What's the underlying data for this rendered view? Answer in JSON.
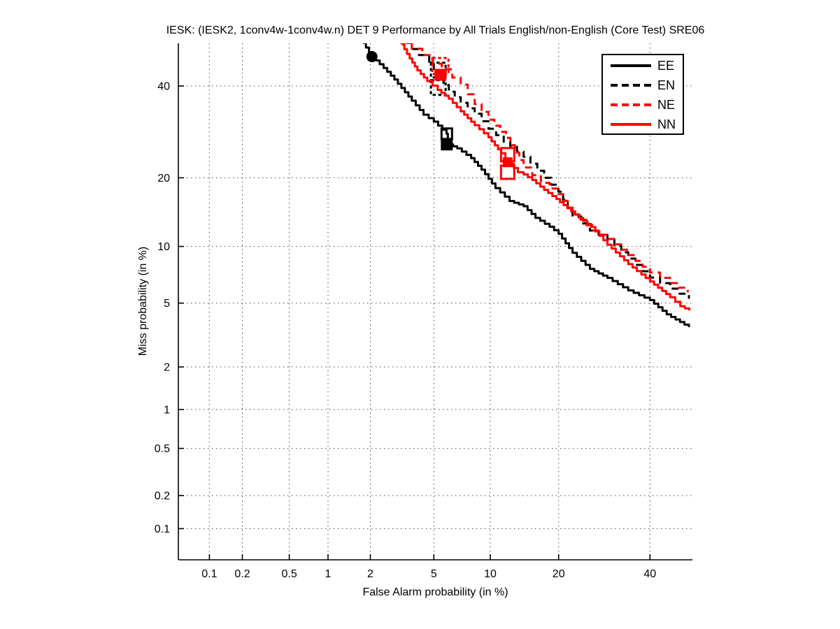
{
  "figure": {
    "title": "IESK: (IESK2, 1conv4w-1conv4w.n) DET 9 Performance by All Trials English/non-English (Core Test) SRE06",
    "background_color": "#ffffff"
  },
  "colors": {
    "black_series": "#000000",
    "red_series": "#ff0000",
    "grid": "#3a3a3a",
    "axis": "#000000"
  },
  "chart_data": {
    "type": "line",
    "subtype": "DET curve (normal-deviate / probit scale on both axes)",
    "title": "IESK: (IESK2, 1conv4w-1conv4w.n) DET 9 Performance by All Trials English/non-English (Core Test) SRE06",
    "xlabel": "False Alarm probability (in %)",
    "ylabel": "Miss probability (in %)",
    "grid": true,
    "legend_position": "top-right",
    "xlim_pct": [
      0.05,
      50.8
    ],
    "ylim_pct": [
      0.05,
      50.8
    ],
    "xticks": [
      0.1,
      0.2,
      0.5,
      1,
      2,
      5,
      10,
      20,
      40
    ],
    "yticks": [
      0.1,
      0.2,
      0.5,
      1,
      2,
      5,
      10,
      20,
      40
    ],
    "xtick_labels": [
      "0.1",
      "0.2",
      "0.5",
      "1",
      "2",
      "5",
      "10",
      "20",
      "40"
    ],
    "ytick_labels": [
      "0.1",
      "0.2",
      "0.5",
      "1",
      "2",
      "5",
      "10",
      "20",
      "40"
    ],
    "series": [
      {
        "name": "EE",
        "color": "#000000",
        "style": "solid",
        "points": [
          [
            1.78,
            50.9
          ],
          [
            2.05,
            47.4
          ],
          [
            2.45,
            44.5
          ],
          [
            2.88,
            41.6
          ],
          [
            3.7,
            36.4
          ],
          [
            4.35,
            33.1
          ],
          [
            5.0,
            31.5
          ],
          [
            5.9,
            28.8
          ],
          [
            6.1,
            26.5
          ],
          [
            6.75,
            25.7
          ],
          [
            8.0,
            23.7
          ],
          [
            9.05,
            21.5
          ],
          [
            10.6,
            18.2
          ],
          [
            12.35,
            16.1
          ],
          [
            14.3,
            15.3
          ],
          [
            16.1,
            13.6
          ],
          [
            18.4,
            12.4
          ],
          [
            20.0,
            11.5
          ],
          [
            22.6,
            9.3
          ],
          [
            26.1,
            7.7
          ],
          [
            29.9,
            6.9
          ],
          [
            34.7,
            5.9
          ],
          [
            40.0,
            5.2
          ],
          [
            44.2,
            4.3
          ],
          [
            49.9,
            3.6
          ]
        ],
        "markers": [
          {
            "shape": "circle",
            "filled": true,
            "fa": 2.05,
            "miss": 47.4,
            "size": 13
          },
          {
            "shape": "square",
            "filled": false,
            "fa": 5.92,
            "miss": 28.8,
            "size": 15
          },
          {
            "shape": "square",
            "filled": true,
            "fa": 5.92,
            "miss": 26.5,
            "size": 14
          }
        ]
      },
      {
        "name": "EN",
        "color": "#000000",
        "style": "dashed",
        "points": [
          [
            3.42,
            50.9
          ],
          [
            4.08,
            47.8
          ],
          [
            4.7,
            45.6
          ],
          [
            5.3,
            41.9
          ],
          [
            6.08,
            38.6
          ],
          [
            7.05,
            35.9
          ],
          [
            8.35,
            33.3
          ],
          [
            9.8,
            29.9
          ],
          [
            11.6,
            27.1
          ],
          [
            14.3,
            24.0
          ],
          [
            17.5,
            20.0
          ],
          [
            19.96,
            17.6
          ],
          [
            22.6,
            13.8
          ],
          [
            26.1,
            11.9
          ],
          [
            29.9,
            10.8
          ],
          [
            34.7,
            8.7
          ],
          [
            40.0,
            6.93
          ],
          [
            45.1,
            6.03
          ],
          [
            49.9,
            5.3
          ]
        ],
        "markers": [
          {
            "shape": "square",
            "filled": false,
            "dashed": true,
            "fa": 5.3,
            "miss": 44.0,
            "size": 21
          },
          {
            "shape": "square",
            "filled": false,
            "dashed": true,
            "fa": 5.3,
            "miss": 39.6,
            "size": 21
          }
        ]
      },
      {
        "name": "NE",
        "color": "#ff0000",
        "style": "dashed",
        "points": [
          [
            3.12,
            50.9
          ],
          [
            3.7,
            49.4
          ],
          [
            4.28,
            47.8
          ],
          [
            4.93,
            45.6
          ],
          [
            5.55,
            44.2
          ],
          [
            6.35,
            42.1
          ],
          [
            7.05,
            40.35
          ],
          [
            8.35,
            35.6
          ],
          [
            9.8,
            31.95
          ],
          [
            11.9,
            27.9
          ],
          [
            14.3,
            21.9
          ],
          [
            16.97,
            19.1
          ],
          [
            19.96,
            17.2
          ],
          [
            22.6,
            14.1
          ],
          [
            26.8,
            11.9
          ],
          [
            29.9,
            10.87
          ],
          [
            34.7,
            9.06
          ],
          [
            40.0,
            7.37
          ],
          [
            45.06,
            6.47
          ],
          [
            49.6,
            5.76
          ]
        ],
        "markers": [
          {
            "shape": "square",
            "filled": false,
            "dashed": true,
            "fa": 5.45,
            "miss": 45.0,
            "size": 23
          },
          {
            "shape": "square",
            "filled": true,
            "fa": 5.45,
            "miss": 42.8,
            "size": 14
          }
        ]
      },
      {
        "name": "NN",
        "color": "#ff0000",
        "style": "solid",
        "points": [
          [
            3.2,
            50.5
          ],
          [
            3.59,
            46.9
          ],
          [
            4.0,
            43.9
          ],
          [
            4.58,
            41.2
          ],
          [
            5.26,
            39.0
          ],
          [
            6.07,
            36.9
          ],
          [
            7.05,
            33.9
          ],
          [
            8.35,
            30.7
          ],
          [
            9.8,
            28.0
          ],
          [
            11.3,
            24.7
          ],
          [
            12.35,
            22.6
          ],
          [
            13.5,
            21.0
          ],
          [
            14.3,
            20.6
          ],
          [
            15.6,
            19.6
          ],
          [
            17.5,
            17.9
          ],
          [
            19.6,
            16.4
          ],
          [
            21.6,
            15.0
          ],
          [
            23.9,
            13.6
          ],
          [
            26.4,
            12.36
          ],
          [
            29.9,
            10.2
          ],
          [
            34.7,
            8.15
          ],
          [
            40.0,
            6.6
          ],
          [
            45.1,
            5.4
          ],
          [
            47.7,
            4.8
          ],
          [
            50.0,
            4.53
          ]
        ],
        "markers": [
          {
            "shape": "square",
            "filled": false,
            "fa": 12.1,
            "miss": 24.4,
            "size": 19
          },
          {
            "shape": "square",
            "filled": false,
            "fa": 12.1,
            "miss": 21.0,
            "size": 19
          },
          {
            "shape": "square",
            "filled": true,
            "fa": 12.1,
            "miss": 22.9,
            "size": 11
          }
        ]
      }
    ],
    "legend_entries": [
      "EE",
      "EN",
      "NE",
      "NN"
    ]
  }
}
